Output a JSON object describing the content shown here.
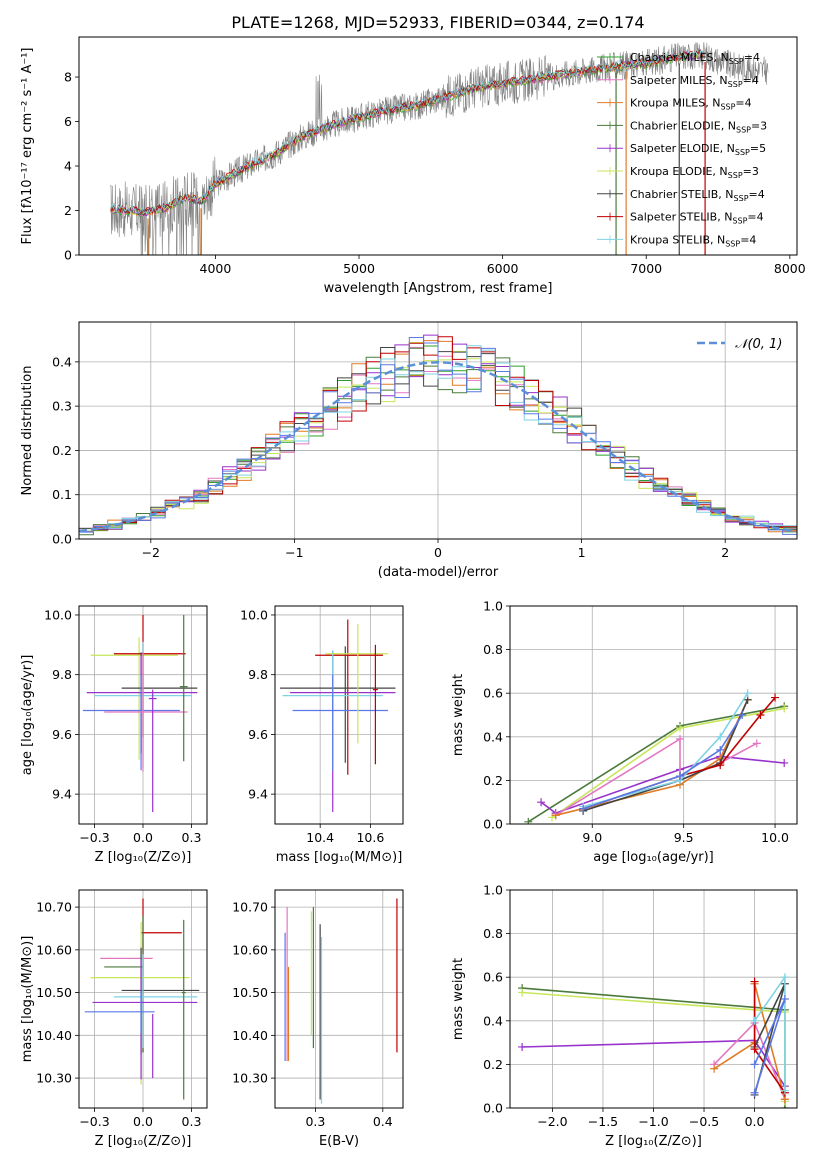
{
  "title": "PLATE=1268, MJD=52933, FIBERID=0344, z=0.174",
  "colors": {
    "chabrier_miles": "#2ca02c",
    "salpeter_miles": "#e377c2",
    "kroupa_miles": "#e07b24",
    "chabrier_elodie": "#4a7a3a",
    "salpeter_elodie": "#9932cc",
    "kroupa_elodie": "#c8e65a",
    "chabrier_stelib": "#444444",
    "salpeter_stelib": "#c00000",
    "kroupa_stelib": "#7fd3e3",
    "extra_blue": "#5a78e6",
    "data_gray": "#808080",
    "normal_curve": "#5b8fd6",
    "grid": "#b0b0b0"
  },
  "chart_data": [
    {
      "id": "spectrum",
      "type": "line",
      "xlabel": "wavelength [Angstrom, rest frame]",
      "ylabel": "Flux [f$_\\lambda$10$^{-17}$ erg cm$^{-2}$ s$^{-1}$ A$^{-1}$]",
      "xlim": [
        3050,
        8050
      ],
      "ylim": [
        0,
        9.8
      ],
      "xticks": [
        4000,
        5000,
        6000,
        7000,
        8000
      ],
      "yticks": [
        0,
        2,
        4,
        6,
        8
      ],
      "grid": false,
      "legend_position": "top-right",
      "legend": [
        {
          "label": "Chabrier MILES, N",
          "sub": "SSP",
          "tail": "=4",
          "color_key": "chabrier_miles"
        },
        {
          "label": "Salpeter MILES, N",
          "sub": "SSP",
          "tail": "=4",
          "color_key": "salpeter_miles"
        },
        {
          "label": "Kroupa MILES, N",
          "sub": "SSP",
          "tail": "=4",
          "color_key": "kroupa_miles"
        },
        {
          "label": "Chabrier ELODIE, N",
          "sub": "SSP",
          "tail": "=3",
          "color_key": "chabrier_elodie"
        },
        {
          "label": "Salpeter ELODIE, N",
          "sub": "SSP",
          "tail": "=5",
          "color_key": "salpeter_elodie"
        },
        {
          "label": "Kroupa ELODIE, N",
          "sub": "SSP",
          "tail": "=3",
          "color_key": "kroupa_elodie"
        },
        {
          "label": "Chabrier STELIB, N",
          "sub": "SSP",
          "tail": "=4",
          "color_key": "chabrier_stelib"
        },
        {
          "label": "Salpeter STELIB, N",
          "sub": "SSP",
          "tail": "=4",
          "color_key": "salpeter_stelib"
        },
        {
          "label": "Kroupa STELIB, N",
          "sub": "SSP",
          "tail": "=4",
          "color_key": "kroupa_stelib"
        }
      ],
      "continuum": [
        [
          3270,
          2.05
        ],
        [
          3400,
          2.0
        ],
        [
          3500,
          1.9
        ],
        [
          3650,
          2.1
        ],
        [
          3800,
          2.6
        ],
        [
          3900,
          2.4
        ],
        [
          4000,
          3.2
        ],
        [
          4200,
          3.9
        ],
        [
          4400,
          4.5
        ],
        [
          4600,
          5.3
        ],
        [
          4800,
          5.8
        ],
        [
          5000,
          6.2
        ],
        [
          5200,
          6.5
        ],
        [
          5400,
          6.7
        ],
        [
          5600,
          7.1
        ],
        [
          5800,
          7.5
        ],
        [
          6000,
          7.7
        ],
        [
          6200,
          7.9
        ],
        [
          6400,
          8.1
        ],
        [
          6600,
          8.3
        ],
        [
          6800,
          8.5
        ],
        [
          7000,
          8.6
        ],
        [
          7200,
          8.9
        ],
        [
          7400,
          9.0
        ],
        [
          7600,
          8.5
        ],
        [
          7800,
          8.3
        ]
      ]
    },
    {
      "id": "residuals",
      "type": "histogram",
      "xlabel": "(data-model)/error",
      "ylabel": "Normed distribution",
      "xlim": [
        -2.5,
        2.5
      ],
      "ylim": [
        0,
        0.49
      ],
      "xticks": [
        -2,
        -1,
        0,
        1,
        2
      ],
      "yticks": [
        0.0,
        0.1,
        0.2,
        0.3,
        0.4
      ],
      "grid": true,
      "legend_position": "top-right",
      "legend": [
        {
          "label": "𝒩(0, 1)",
          "color_key": "normal_curve"
        }
      ]
    },
    {
      "id": "age_vs_z",
      "type": "errorbar",
      "xlabel": "Z [log₁₀(Z/Z⊙)]",
      "ylabel": "age  [log₁₀(age/yr)]",
      "xlim": [
        -0.33,
        0.33
      ],
      "ylim": [
        9.3,
        10.03
      ],
      "xticks": [
        -0.25,
        0.0,
        0.25
      ],
      "yticks": [
        9.4,
        9.6,
        9.8,
        10.0
      ],
      "grid": true,
      "points": [
        {
          "x": -0.02,
          "y": 9.865,
          "xerr": [
            0.25,
            0.2
          ],
          "yerr": [
            0.35,
            0.06
          ],
          "color_key": "kroupa_elodie"
        },
        {
          "x": 0.0,
          "y": 9.87,
          "xerr": [
            0.15,
            0.22
          ],
          "yerr": [
            0.28,
            0.13
          ],
          "color_key": "salpeter_stelib"
        },
        {
          "x": -0.01,
          "y": 9.755,
          "xerr": [
            0.1,
            0.29
          ],
          "yerr": [
            0.22,
            0.12
          ],
          "color_key": "chabrier_stelib"
        },
        {
          "x": -0.01,
          "y": 9.74,
          "xerr": [
            0.28,
            0.29
          ],
          "yerr": [
            0.2,
            0.12
          ],
          "color_key": "salpeter_elodie"
        },
        {
          "x": 0.0,
          "y": 9.73,
          "xerr": [
            0.25,
            0.25
          ],
          "yerr": [
            0.24,
            0.18
          ],
          "color_key": "kroupa_stelib"
        },
        {
          "x": -0.01,
          "y": 9.68,
          "xerr": [
            0.3,
            0.2
          ],
          "yerr": [
            0.2,
            0.12
          ],
          "color_key": "extra_blue"
        },
        {
          "x": 0.0,
          "y": 9.675,
          "xerr": [
            0.2,
            0.23
          ],
          "yerr": [
            0.2,
            0.2
          ],
          "color_key": "salpeter_miles"
        },
        {
          "x": 0.21,
          "y": 9.76,
          "xerr": [
            0.02,
            0.02
          ],
          "yerr": [
            0.25,
            0.24
          ],
          "color_key": "chabrier_elodie"
        },
        {
          "x": 0.05,
          "y": 9.72,
          "xerr": [
            0.02,
            0.02
          ],
          "yerr": [
            0.38,
            0.03
          ],
          "color_key": "salpeter_elodie"
        }
      ]
    },
    {
      "id": "age_vs_mass",
      "type": "errorbar",
      "xlabel": "mass [log₁₀(M/M⊙)]",
      "ylabel": "",
      "xlim": [
        10.22,
        10.73
      ],
      "ylim": [
        9.3,
        10.03
      ],
      "xticks": [
        10.4,
        10.6
      ],
      "yticks": [
        9.4,
        9.6,
        9.8,
        10.0
      ],
      "grid": true,
      "points": [
        {
          "x": 10.51,
          "y": 9.865,
          "xerr": [
            0.13,
            0.14
          ],
          "yerr": [
            0.4,
            0.12
          ],
          "color_key": "salpeter_stelib"
        },
        {
          "x": 10.5,
          "y": 9.755,
          "xerr": [
            0.26,
            0.2
          ],
          "yerr": [
            0.25,
            0.14
          ],
          "color_key": "chabrier_stelib"
        },
        {
          "x": 10.45,
          "y": 9.74,
          "xerr": [
            0.17,
            0.25
          ],
          "yerr": [
            0.4,
            0.14
          ],
          "color_key": "salpeter_elodie"
        },
        {
          "x": 10.45,
          "y": 9.73,
          "xerr": [
            0.2,
            0.2
          ],
          "yerr": [
            0.25,
            0.15
          ],
          "color_key": "kroupa_stelib"
        },
        {
          "x": 10.45,
          "y": 9.68,
          "xerr": [
            0.16,
            0.22
          ],
          "yerr": [
            0.2,
            0.12
          ],
          "color_key": "extra_blue"
        },
        {
          "x": 10.55,
          "y": 9.87,
          "xerr": [
            0.13,
            0.12
          ],
          "yerr": [
            0.3,
            0.1
          ],
          "color_key": "kroupa_elodie"
        },
        {
          "x": 10.62,
          "y": 9.75,
          "xerr": [
            0.01,
            0.01
          ],
          "yerr": [
            0.25,
            0.15
          ],
          "color_key": "salpeter_stelib"
        }
      ]
    },
    {
      "id": "weight_vs_age",
      "type": "line",
      "xlabel": "age  [log₁₀(age/yr)]",
      "ylabel": "mass weight",
      "xlim": [
        8.55,
        10.12
      ],
      "ylim": [
        0,
        1.0
      ],
      "xticks": [
        9.0,
        9.5,
        10.0
      ],
      "yticks": [
        0.0,
        0.2,
        0.4,
        0.6,
        0.8,
        1.0
      ],
      "grid": true,
      "series": [
        {
          "color_key": "chabrier_elodie",
          "x": [
            8.65,
            9.48,
            10.05
          ],
          "y": [
            0.01,
            0.45,
            0.54
          ]
        },
        {
          "color_key": "kroupa_elodie",
          "x": [
            8.78,
            9.48,
            10.05
          ],
          "y": [
            0.03,
            0.44,
            0.53
          ]
        },
        {
          "color_key": "salpeter_elodie",
          "x": [
            8.72,
            8.8,
            9.48,
            9.7,
            10.05
          ],
          "y": [
            0.1,
            0.05,
            0.25,
            0.31,
            0.28
          ]
        },
        {
          "color_key": "salpeter_miles",
          "x": [
            8.8,
            9.48,
            9.48,
            9.7,
            9.9
          ],
          "y": [
            0.04,
            0.39,
            0.2,
            0.28,
            0.37
          ]
        },
        {
          "color_key": "kroupa_miles",
          "x": [
            8.8,
            9.48,
            9.7,
            9.85
          ],
          "y": [
            0.04,
            0.18,
            0.3,
            0.57
          ]
        },
        {
          "color_key": "chabrier_stelib",
          "x": [
            8.95,
            9.48,
            9.7,
            9.85
          ],
          "y": [
            0.06,
            0.2,
            0.28,
            0.57
          ]
        },
        {
          "color_key": "salpeter_stelib",
          "x": [
            8.95,
            9.48,
            9.7,
            9.92,
            10.0
          ],
          "y": [
            0.07,
            0.22,
            0.27,
            0.5,
            0.58
          ]
        },
        {
          "color_key": "kroupa_stelib",
          "x": [
            8.95,
            9.48,
            9.7,
            9.85
          ],
          "y": [
            0.08,
            0.2,
            0.4,
            0.6
          ]
        },
        {
          "color_key": "extra_blue",
          "x": [
            8.95,
            9.48,
            9.7,
            9.82
          ],
          "y": [
            0.07,
            0.22,
            0.34,
            0.5
          ]
        }
      ]
    },
    {
      "id": "mass_vs_z",
      "type": "errorbar",
      "xlabel": "Z [log₁₀(Z/Z⊙)]",
      "ylabel": "mass [log₁₀(M/M⊙)]",
      "xlim": [
        -0.33,
        0.33
      ],
      "ylim": [
        10.23,
        10.74
      ],
      "xticks": [
        -0.25,
        0.0,
        0.25
      ],
      "yticks": [
        10.3,
        10.4,
        10.5,
        10.6,
        10.7
      ],
      "grid": true,
      "points": [
        {
          "x": 0.0,
          "y": 10.64,
          "xerr": [
            0.01,
            0.2
          ],
          "yerr": [
            0.28,
            0.08
          ],
          "color_key": "salpeter_stelib"
        },
        {
          "x": 0.0,
          "y": 10.58,
          "xerr": [
            0.22,
            0.05
          ],
          "yerr": [
            0.22,
            0.04
          ],
          "color_key": "salpeter_miles"
        },
        {
          "x": 0.0,
          "y": 10.56,
          "xerr": [
            0.2,
            0.0
          ],
          "yerr": [
            0.2,
            0.12
          ],
          "color_key": "chabrier_elodie"
        },
        {
          "x": -0.01,
          "y": 10.535,
          "xerr": [
            0.26,
            0.25
          ],
          "yerr": [
            0.25,
            0.13
          ],
          "color_key": "kroupa_elodie"
        },
        {
          "x": -0.01,
          "y": 10.505,
          "xerr": [
            0.1,
            0.3
          ],
          "yerr": [
            0.15,
            0.1
          ],
          "color_key": "chabrier_stelib"
        },
        {
          "x": 0.0,
          "y": 10.49,
          "xerr": [
            0.15,
            0.28
          ],
          "yerr": [
            0.12,
            0.1
          ],
          "color_key": "kroupa_stelib"
        },
        {
          "x": -0.01,
          "y": 10.477,
          "xerr": [
            0.25,
            0.29
          ],
          "yerr": [
            0.18,
            0.1
          ],
          "color_key": "salpeter_elodie"
        },
        {
          "x": -0.01,
          "y": 10.455,
          "xerr": [
            0.29,
            0.07
          ],
          "yerr": [
            0.05,
            0.05
          ],
          "color_key": "extra_blue"
        },
        {
          "x": 0.21,
          "y": 10.5,
          "xerr": [
            0.01,
            0.01
          ],
          "yerr": [
            0.25,
            0.17
          ],
          "color_key": "chabrier_elodie"
        },
        {
          "x": 0.05,
          "y": 10.45,
          "xerr": [
            0.0,
            0.0
          ],
          "yerr": [
            0.15,
            0.0
          ],
          "color_key": "salpeter_elodie"
        }
      ]
    },
    {
      "id": "mass_vs_ebv",
      "type": "errorbar",
      "xlabel": "E(B-V)",
      "ylabel": "",
      "xlim": [
        0.24,
        0.43
      ],
      "ylim": [
        10.23,
        10.74
      ],
      "xticks": [
        0.3,
        0.4
      ],
      "yticks": [
        10.3,
        10.4,
        10.5,
        10.6,
        10.7
      ],
      "grid": true,
      "points": [
        {
          "x": 0.255,
          "y": 10.5,
          "xerr": [
            0,
            0
          ],
          "yerr": [
            0.16,
            0.14
          ],
          "color_key": "extra_blue"
        },
        {
          "x": 0.258,
          "y": 10.52,
          "xerr": [
            0,
            0
          ],
          "yerr": [
            0.18,
            0.18
          ],
          "color_key": "salpeter_miles"
        },
        {
          "x": 0.26,
          "y": 10.45,
          "xerr": [
            0,
            0
          ],
          "yerr": [
            0.11,
            0.11
          ],
          "color_key": "kroupa_miles"
        },
        {
          "x": 0.294,
          "y": 10.55,
          "xerr": [
            0,
            0
          ],
          "yerr": [
            0.15,
            0.14
          ],
          "color_key": "kroupa_elodie"
        },
        {
          "x": 0.297,
          "y": 10.53,
          "xerr": [
            0,
            0
          ],
          "yerr": [
            0.16,
            0.17
          ],
          "color_key": "chabrier_elodie"
        },
        {
          "x": 0.307,
          "y": 10.45,
          "xerr": [
            0,
            0
          ],
          "yerr": [
            0.2,
            0.21
          ],
          "color_key": "chabrier_stelib"
        },
        {
          "x": 0.309,
          "y": 10.43,
          "xerr": [
            0,
            0
          ],
          "yerr": [
            0.19,
            0.2
          ],
          "color_key": "kroupa_stelib"
        },
        {
          "x": 0.421,
          "y": 10.54,
          "xerr": [
            0,
            0
          ],
          "yerr": [
            0.18,
            0.18
          ],
          "color_key": "salpeter_stelib"
        }
      ]
    },
    {
      "id": "weight_vs_z",
      "type": "line",
      "xlabel": "Z [log₁₀(Z/Z⊙)]",
      "ylabel": "mass weight",
      "xlim": [
        -2.42,
        0.42
      ],
      "ylim": [
        0,
        1.0
      ],
      "xticks": [
        -2.0,
        -1.5,
        -1.0,
        -0.5,
        0.0
      ],
      "yticks": [
        0.0,
        0.2,
        0.4,
        0.6,
        0.8,
        1.0
      ],
      "grid": true,
      "series": [
        {
          "color_key": "chabrier_elodie",
          "x": [
            -2.3,
            0.3,
            0.3
          ],
          "y": [
            0.55,
            0.45,
            0.0
          ]
        },
        {
          "color_key": "kroupa_elodie",
          "x": [
            -2.3,
            0.3,
            0.3
          ],
          "y": [
            0.53,
            0.44,
            0.03
          ]
        },
        {
          "color_key": "salpeter_elodie",
          "x": [
            -2.3,
            0.0,
            0.3
          ],
          "y": [
            0.28,
            0.31,
            0.1
          ]
        },
        {
          "color_key": "salpeter_miles",
          "x": [
            -0.4,
            0.0,
            0.3
          ],
          "y": [
            0.2,
            0.39,
            0.04
          ]
        },
        {
          "color_key": "kroupa_miles",
          "x": [
            -0.4,
            0.0,
            0.0,
            0.3
          ],
          "y": [
            0.18,
            0.3,
            0.57,
            0.04
          ]
        },
        {
          "color_key": "chabrier_stelib",
          "x": [
            0.0,
            0.3,
            0.0
          ],
          "y": [
            0.28,
            0.57,
            0.06
          ]
        },
        {
          "color_key": "salpeter_stelib",
          "x": [
            0.0,
            0.0,
            0.3
          ],
          "y": [
            0.58,
            0.27,
            0.07
          ]
        },
        {
          "color_key": "kroupa_stelib",
          "x": [
            0.0,
            0.3,
            0.3
          ],
          "y": [
            0.4,
            0.6,
            0.08
          ]
        },
        {
          "color_key": "extra_blue",
          "x": [
            0.0,
            0.3,
            0.0
          ],
          "y": [
            0.07,
            0.5,
            0.2
          ]
        }
      ]
    }
  ]
}
